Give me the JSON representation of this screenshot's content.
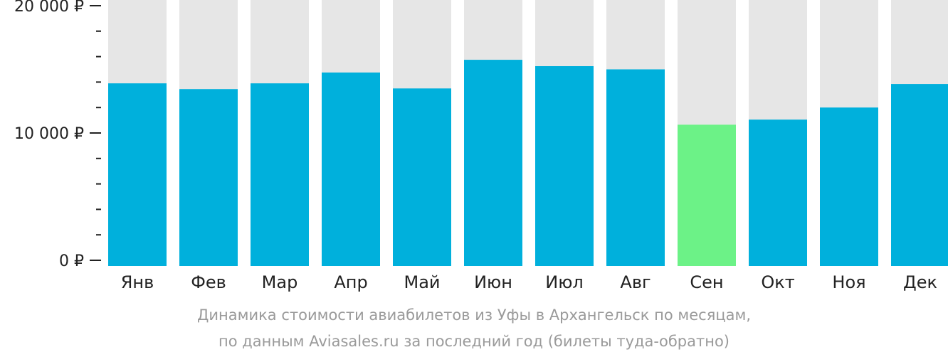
{
  "colors": {
    "bar": "#00b0dc",
    "highlight": "#6cf287",
    "track": "#e6e6e6",
    "axis": "#222222"
  },
  "caption": {
    "line1": "Динамика стоимости авиабилетов из Уфы в Архангельск по месяцам,",
    "line2": "по данным Aviasales.ru за последний год (билеты туда-обратно)"
  },
  "chart_data": {
    "type": "bar",
    "categories": [
      "Янв",
      "Фев",
      "Мар",
      "Апр",
      "Май",
      "Июн",
      "Июл",
      "Авг",
      "Сен",
      "Окт",
      "Ноя",
      "Дек"
    ],
    "values": [
      13900,
      13450,
      13900,
      14750,
      13500,
      15750,
      15250,
      15000,
      10650,
      11050,
      12000,
      13850
    ],
    "highlight_index": 8,
    "ylim": [
      0,
      20000
    ],
    "y_ticks": [
      {
        "value": 0,
        "label": "0 ₽"
      },
      {
        "value": 10000,
        "label": "10 000 ₽"
      },
      {
        "value": 20000,
        "label": "20 000 ₽"
      }
    ],
    "minor_tick_step": 2000,
    "title": "",
    "xlabel": "",
    "ylabel": ""
  }
}
